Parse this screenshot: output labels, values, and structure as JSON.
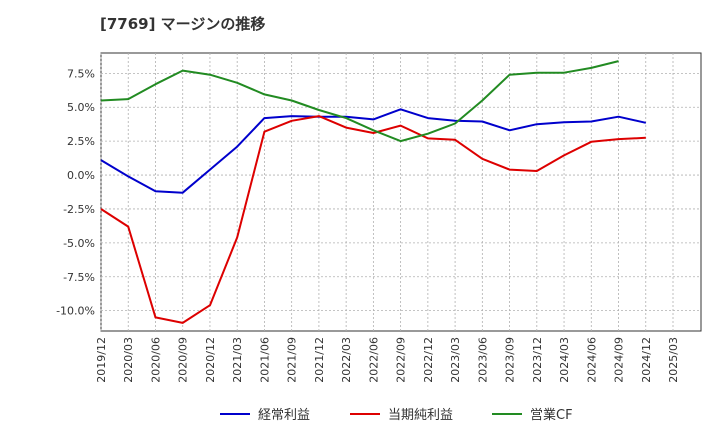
{
  "chart_data": {
    "type": "line",
    "title": "[7769]  マージンの推移",
    "xlabel": "",
    "ylabel": "",
    "x": [
      "2019/12",
      "2020/03",
      "2020/06",
      "2020/09",
      "2020/12",
      "2021/03",
      "2021/06",
      "2021/09",
      "2021/12",
      "2022/03",
      "2022/06",
      "2022/09",
      "2022/12",
      "2023/03",
      "2023/06",
      "2023/09",
      "2023/12",
      "2024/03",
      "2024/06",
      "2024/09",
      "2024/12",
      "2025/03"
    ],
    "ylim": [
      -11.5,
      9.0
    ],
    "yticks": [
      -10.0,
      -7.5,
      -5.0,
      -2.5,
      0.0,
      2.5,
      5.0,
      7.5
    ],
    "ytick_labels": [
      "-10.0%",
      "-7.5%",
      "-5.0%",
      "-2.5%",
      "0.0%",
      "2.5%",
      "5.0%",
      "7.5%"
    ],
    "grid": true,
    "legend_position": "bottom",
    "series": [
      {
        "name": "経常利益",
        "color": "#0000cc",
        "values": [
          1.1,
          -0.1,
          -1.2,
          -1.3,
          0.4,
          2.1,
          4.2,
          4.35,
          4.3,
          4.3,
          4.1,
          4.85,
          4.2,
          4.0,
          3.95,
          3.3,
          3.75,
          3.9,
          3.95,
          4.3,
          3.85,
          null
        ]
      },
      {
        "name": "当期純利益",
        "color": "#dd0000",
        "values": [
          -2.5,
          -3.8,
          -10.5,
          -10.9,
          -9.6,
          -4.6,
          3.2,
          4.0,
          4.35,
          3.5,
          3.1,
          3.65,
          2.7,
          2.6,
          1.2,
          0.4,
          0.3,
          1.45,
          2.45,
          2.65,
          2.75,
          null
        ]
      },
      {
        "name": "営業CF",
        "color": "#228b22",
        "values": [
          5.5,
          5.6,
          6.7,
          7.7,
          7.4,
          6.8,
          5.95,
          5.5,
          4.8,
          4.2,
          3.3,
          2.5,
          3.05,
          3.8,
          5.5,
          7.4,
          7.55,
          7.55,
          7.9,
          8.4,
          null,
          null
        ]
      }
    ]
  }
}
